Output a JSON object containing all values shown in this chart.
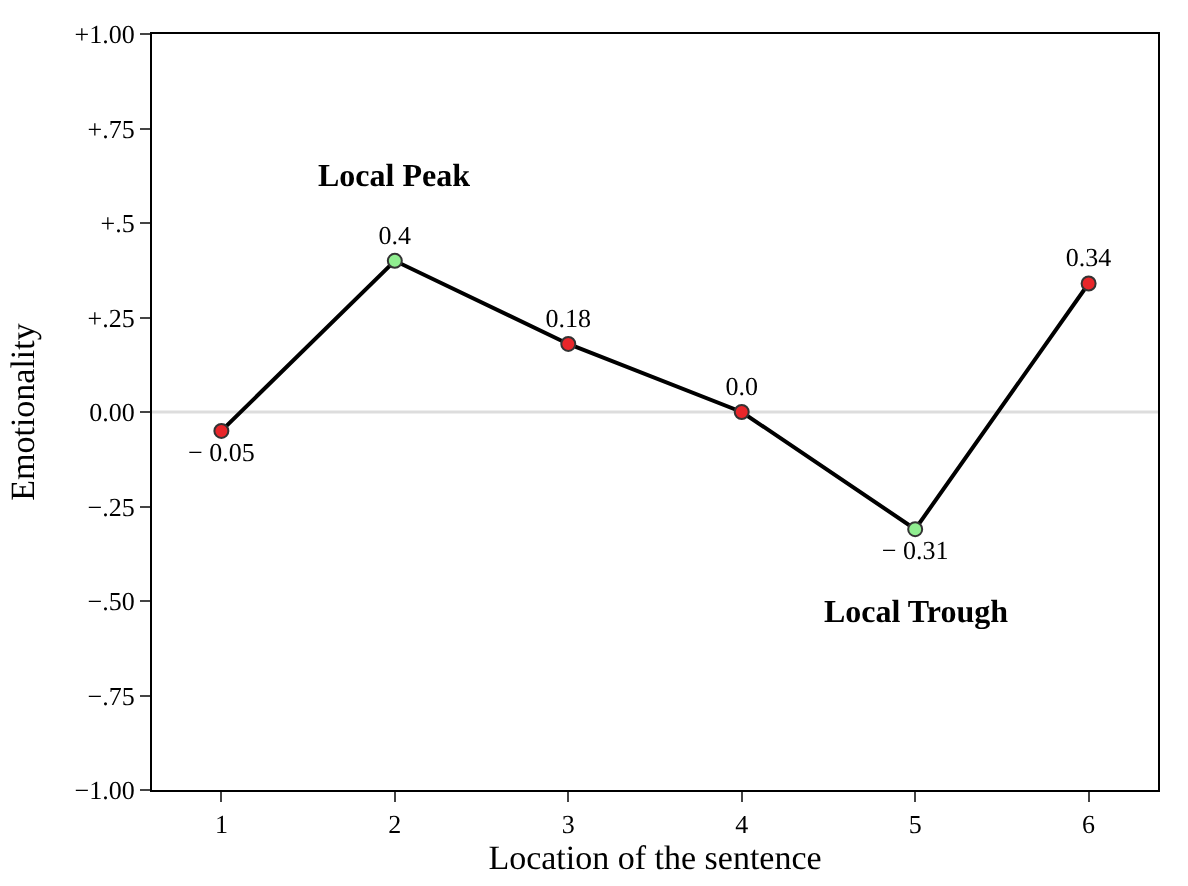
{
  "chart_data": {
    "type": "line",
    "xlabel": "Location of the sentence",
    "ylabel": "Emotionality",
    "x": [
      1,
      2,
      3,
      4,
      5,
      6
    ],
    "series": [
      {
        "color": "#000000",
        "values": [
          -0.05,
          0.4,
          0.18,
          0.0,
          -0.31,
          0.34
        ],
        "colors": [
          "#e8262a",
          "#90ee90",
          "#e8262a",
          "#e8262a",
          "#90ee90",
          "#e8262a"
        ],
        "value_labels": [
          "− 0.05",
          "0.4",
          "0.18",
          "0.0",
          "− 0.31",
          "0.34"
        ]
      }
    ],
    "xlim": [
      0.6,
      6.4
    ],
    "xticks": [
      1,
      2,
      3,
      4,
      5,
      6
    ],
    "ylim": [
      -1.0,
      1.0
    ],
    "yticks": [
      {
        "value": 1.0,
        "label": "+1.00"
      },
      {
        "value": 0.75,
        "label": "+.75"
      },
      {
        "value": 0.5,
        "label": "+.5"
      },
      {
        "value": 0.25,
        "label": "+.25"
      },
      {
        "value": 0,
        "label": "0.00"
      },
      {
        "value": -0.25,
        "label": "−.25"
      },
      {
        "value": -0.5,
        "label": "−.50"
      },
      {
        "value": -0.75,
        "label": "−.75"
      },
      {
        "value": -1.0,
        "label": "−1.00"
      }
    ],
    "ref_lines": [
      {
        "axis": "y",
        "value": 0,
        "color": "#dddddd"
      }
    ],
    "annotations": [
      {
        "text": "Local Peak",
        "x": 2,
        "y": 0.4
      },
      {
        "text": "Local Trough",
        "x": 5,
        "y": -0.31
      }
    ],
    "marker": "circle",
    "line_style": "solid",
    "grid": false,
    "legend": false
  }
}
